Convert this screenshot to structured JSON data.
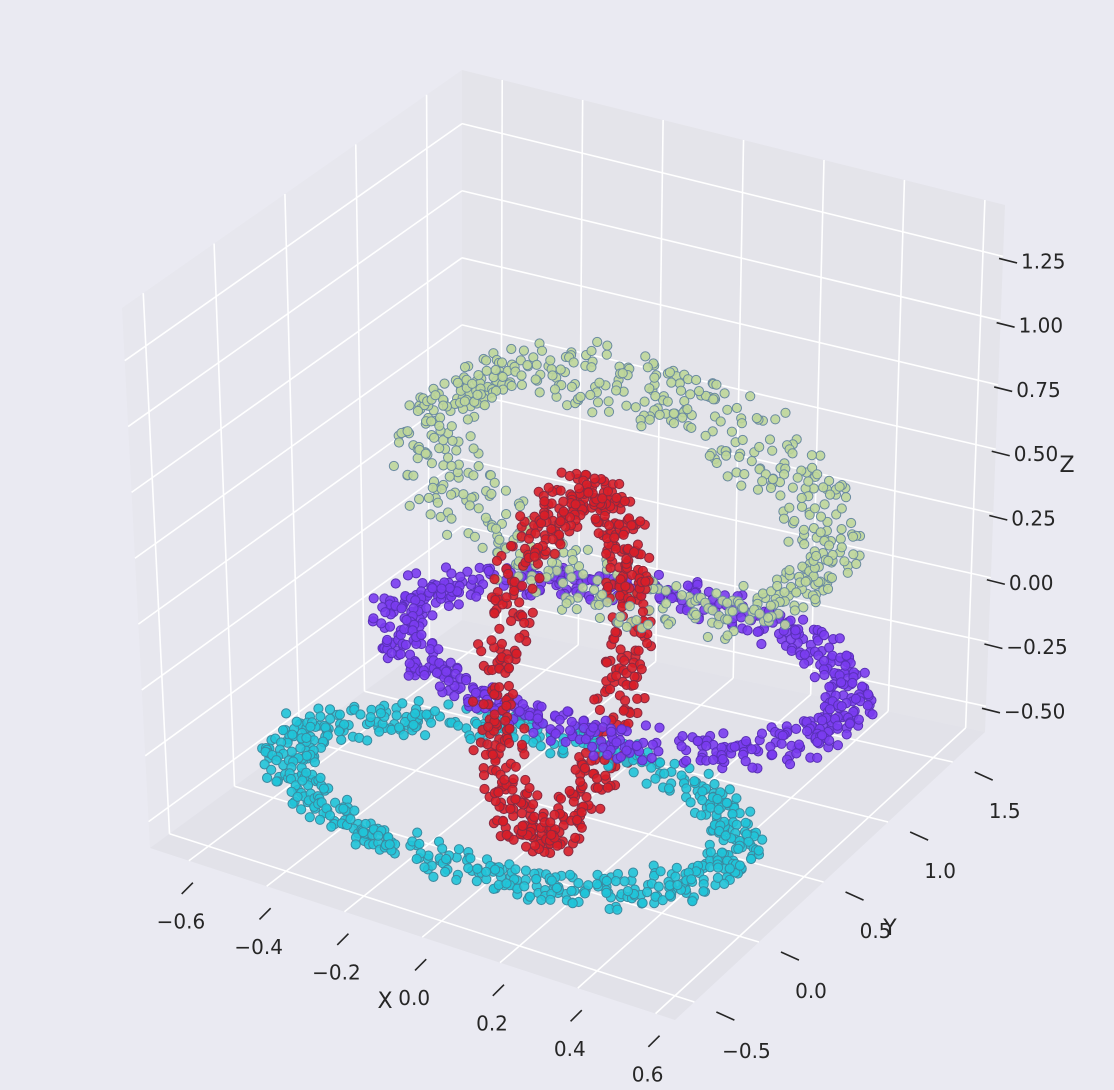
{
  "chart_data": {
    "type": "scatter",
    "projection": "3d",
    "title": "",
    "xlabel": "X",
    "ylabel": "Y",
    "zlabel": "Z",
    "grid": true,
    "xlim": [
      -0.7,
      0.65
    ],
    "ylim": [
      -0.65,
      1.75
    ],
    "zlim": [
      -0.6,
      1.45
    ],
    "xticks": [
      "−0.6",
      "−0.4",
      "−0.2",
      "0.0",
      "0.2",
      "0.4",
      "0.6"
    ],
    "xtick_values": [
      -0.6,
      -0.4,
      -0.2,
      0.0,
      0.2,
      0.4,
      0.6
    ],
    "yticks": [
      "−0.5",
      "0.0",
      "0.5",
      "1.0",
      "1.5"
    ],
    "ytick_values": [
      -0.5,
      0.0,
      0.5,
      1.0,
      1.5
    ],
    "zticks": [
      "−0.50",
      "−0.25",
      "0.00",
      "0.25",
      "0.50",
      "0.75",
      "1.00",
      "1.25"
    ],
    "ztick_values": [
      -0.5,
      -0.25,
      0.0,
      0.25,
      0.5,
      0.75,
      1.0,
      1.25
    ],
    "series": [
      {
        "color": "#20c4d8",
        "edge": "#3a8aa0",
        "shape": "ring",
        "center": [
          -0.05,
          0.2,
          -0.45
        ],
        "radius": 0.55,
        "plane": "xy",
        "count": 700
      },
      {
        "color": "#7a3cf0",
        "edge": "#5a30b8",
        "shape": "ring",
        "center": [
          0.05,
          0.75,
          -0.1
        ],
        "radius": 0.55,
        "plane": "xy",
        "count": 700
      },
      {
        "color": "#d81e28",
        "edge": "#8a2a40",
        "shape": "ring",
        "center": [
          0.0,
          0.45,
          0.0
        ],
        "radius": 0.5,
        "plane": "yz",
        "count": 600
      },
      {
        "color": "#bed69a",
        "edge": "#6a8aa0",
        "shape": "ring",
        "center": [
          0.0,
          0.95,
          0.45
        ],
        "radius": 0.55,
        "plane": "xz",
        "count": 650
      }
    ]
  }
}
